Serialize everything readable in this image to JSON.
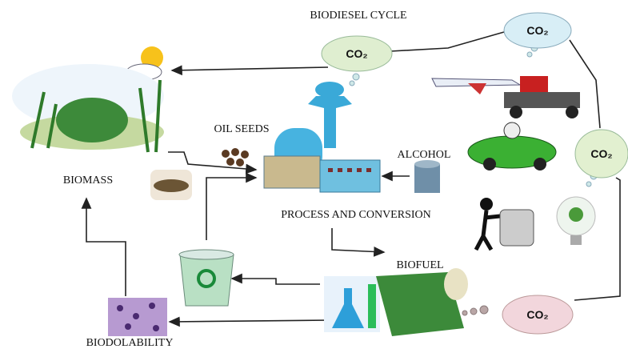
{
  "title": "BIODIESEL CYCLE",
  "labels": {
    "oil_seeds": "OIL SEEDS",
    "alcohol": "ALCOHOL",
    "biomass": "BIOMASS",
    "process": "PROCESS AND CONVERSION",
    "biofuel": "BIOFUEL",
    "biodolability": "BIODOLABILITY"
  },
  "co2_clouds": [
    {
      "label": "CO₂"
    },
    {
      "label": "CO₂"
    },
    {
      "label": "CO₂"
    },
    {
      "label": "CO₂"
    }
  ]
}
